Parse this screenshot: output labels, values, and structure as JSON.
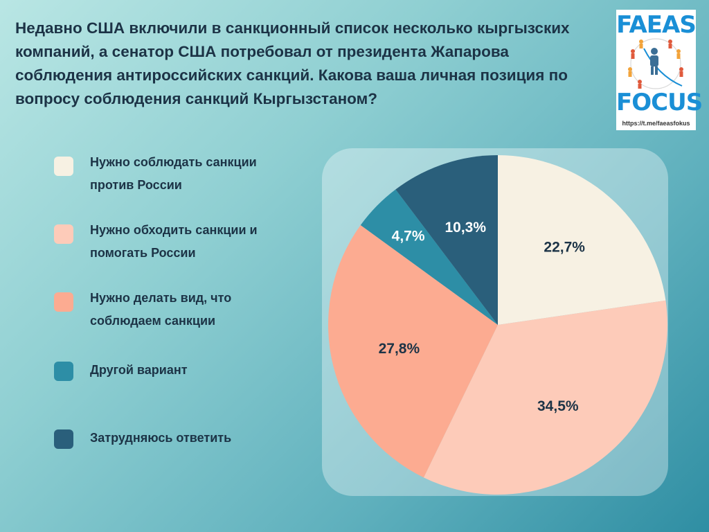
{
  "title": "Недавно США включили в санкционный список несколько кыргызских компаний, а сенатор США потребовал от президента Жапарова соблюдения антироссийских санкций. Какова ваша личная позиция по вопросу соблюдения санкций Кыргызстаном?",
  "logo": {
    "top_text": "FAEAS",
    "bottom_text": "FOCUS",
    "url": "https://t.me/faeasfokus"
  },
  "legend": [
    {
      "label": "Нужно соблюдать санкции против России",
      "color": "#f7f1e3"
    },
    {
      "label": "Нужно обходить санкции и помогать России",
      "color": "#fdcbb9"
    },
    {
      "label": "Нужно делать вид, что соблюдаем санкции",
      "color": "#fcab91"
    },
    {
      "label": "Другой вариант",
      "color": "#2d8ea6"
    },
    {
      "label": "Затрудняюсь ответить",
      "color": "#2a5f7b"
    }
  ],
  "chart_data": {
    "type": "pie",
    "categories": [
      "Нужно соблюдать санкции против России",
      "Нужно обходить санкции и помогать России",
      "Нужно делать вид, что соблюдаем санкции",
      "Другой вариант",
      "Затрудняюсь ответить"
    ],
    "values": [
      22.7,
      34.5,
      27.8,
      4.7,
      10.3
    ],
    "labels": [
      "22,7%",
      "34,5%",
      "27,8%",
      "4,7%",
      "10,3%"
    ],
    "colors": [
      "#f7f1e3",
      "#fdcbb9",
      "#fcab91",
      "#2d8ea6",
      "#2a5f7b"
    ],
    "label_colors": [
      "#1c3346",
      "#1c3346",
      "#1c3346",
      "#ffffff",
      "#ffffff"
    ],
    "start_angle_deg": 0,
    "direction": "clockwise",
    "legend_position": "left"
  }
}
